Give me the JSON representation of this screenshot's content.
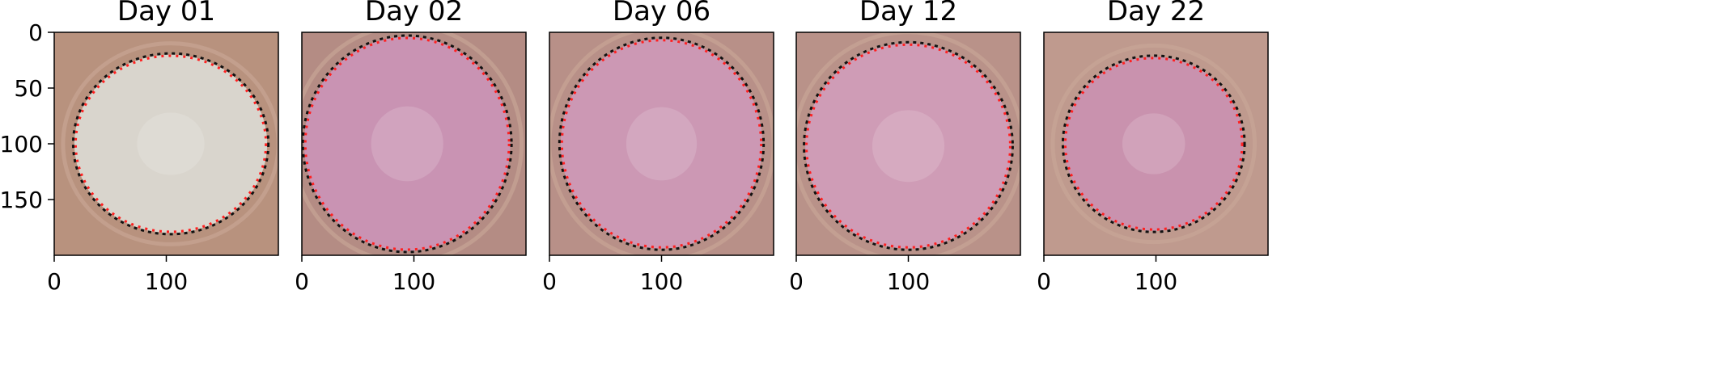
{
  "chart_data": [
    {
      "type": "image",
      "title": "Day 01",
      "xlim": [
        0,
        200
      ],
      "ylim": [
        200,
        0
      ],
      "xticks": [
        0,
        100
      ],
      "yticks": [
        0,
        50,
        100,
        150
      ]
    },
    {
      "type": "image",
      "title": "Day 02",
      "xlim": [
        0,
        200
      ],
      "ylim": [
        200,
        0
      ],
      "xticks": [
        0,
        100
      ]
    },
    {
      "type": "image",
      "title": "Day 06",
      "xlim": [
        0,
        200
      ],
      "ylim": [
        200,
        0
      ],
      "xticks": [
        0,
        100
      ]
    },
    {
      "type": "image",
      "title": "Day 12",
      "xlim": [
        0,
        200
      ],
      "ylim": [
        200,
        0
      ],
      "xticks": [
        0,
        100
      ]
    },
    {
      "type": "image",
      "title": "Day 22",
      "xlim": [
        0,
        200
      ],
      "ylim": [
        200,
        0
      ],
      "xticks": [
        0,
        100
      ]
    }
  ]
}
